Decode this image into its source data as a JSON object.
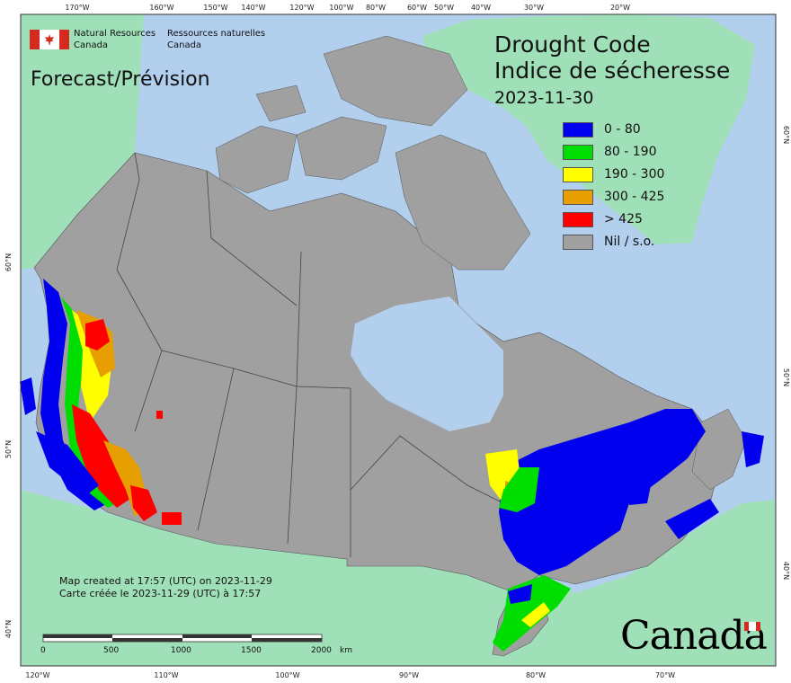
{
  "title": {
    "en": "Drought Code",
    "fr": "Indice de sécheresse"
  },
  "date": "2023-11-30",
  "product": "Forecast/Prévision",
  "agency": {
    "en": [
      "Natural Resources",
      "Canada"
    ],
    "fr": [
      "Ressources naturelles",
      "Canada"
    ]
  },
  "legend": [
    {
      "label": "0 - 80",
      "color": "#0000ee"
    },
    {
      "label": "80 - 190",
      "color": "#00dd00"
    },
    {
      "label": "190 - 300",
      "color": "#ffff00"
    },
    {
      "label": "300 - 425",
      "color": "#e69e00"
    },
    {
      "label": "> 425",
      "color": "#ff0000"
    },
    {
      "label": "Nil / s.o.",
      "color": "#a0a0a0"
    }
  ],
  "credit": {
    "en": "Map created at 17:57 (UTC) on 2023-11-29",
    "fr": "Carte créée le 2023-11-29 (UTC) à 17:57"
  },
  "scalebar": {
    "ticks": [
      "0",
      "500",
      "1000",
      "1500",
      "2000"
    ],
    "unit": "km"
  },
  "wordmark": "Canada",
  "graticule": {
    "top": [
      "170°W",
      "160°W",
      "150°W",
      "140°W",
      "120°W",
      "100°W",
      "80°W",
      "60°W",
      "50°W",
      "40°W",
      "30°W",
      "20°W"
    ],
    "bottom": [
      "120°W",
      "110°W",
      "100°W",
      "90°W",
      "80°W",
      "70°W"
    ],
    "left": [
      "60°N",
      "50°N",
      "40°N"
    ],
    "right": [
      "60°N",
      "50°N",
      "40°N"
    ]
  },
  "colors": {
    "ocean": "#b3cfee",
    "land_foreign": "#9fe0b8",
    "land_canada": "#a0a0a0"
  }
}
